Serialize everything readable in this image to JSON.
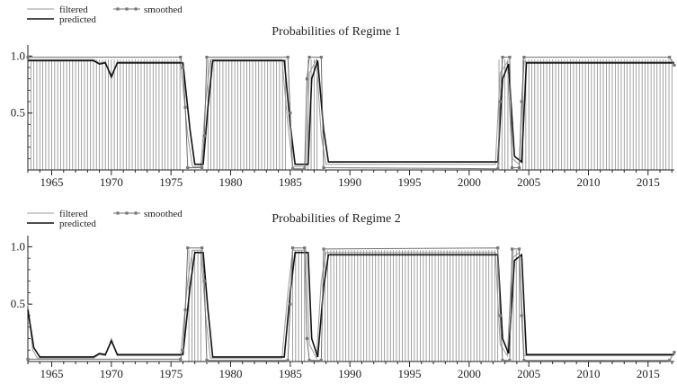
{
  "legend": {
    "filtered": "filtered",
    "smoothed": "smoothed",
    "predicted": "predicted"
  },
  "chart_data": [
    {
      "type": "line",
      "title": "Probabilities of Regime 1",
      "xlabel": "",
      "ylabel": "",
      "xlim": [
        1963.0,
        2017.2
      ],
      "ylim": [
        0,
        1.05
      ],
      "xticks": [
        1965,
        1970,
        1975,
        1980,
        1985,
        1990,
        1995,
        2000,
        2005,
        2010,
        2015
      ],
      "yticks": [
        0.5,
        1.0
      ],
      "ytick_labels": [
        "0.5",
        "1.0"
      ],
      "legend_position": "top-left",
      "series": [
        {
          "name": "filtered",
          "points": [
            [
              1963.0,
              0.97
            ],
            [
              1968.5,
              0.97
            ],
            [
              1969.0,
              0.94
            ],
            [
              1969.5,
              0.95
            ],
            [
              1970.0,
              0.8
            ],
            [
              1970.5,
              0.95
            ],
            [
              1975.8,
              0.95
            ],
            [
              1976.4,
              0.3
            ],
            [
              1976.8,
              0.03
            ],
            [
              1977.5,
              0.03
            ],
            [
              1977.9,
              0.6
            ],
            [
              1978.3,
              0.97
            ],
            [
              1984.3,
              0.97
            ],
            [
              1984.8,
              0.4
            ],
            [
              1985.2,
              0.03
            ],
            [
              1986.3,
              0.03
            ],
            [
              1986.6,
              0.85
            ],
            [
              1987.2,
              0.97
            ],
            [
              1987.6,
              0.3
            ],
            [
              1988.0,
              0.05
            ],
            [
              2002.2,
              0.05
            ],
            [
              2002.6,
              0.85
            ],
            [
              2003.2,
              0.95
            ],
            [
              2003.6,
              0.1
            ],
            [
              2004.2,
              0.05
            ],
            [
              2004.6,
              0.95
            ],
            [
              2017.2,
              0.95
            ]
          ]
        },
        {
          "name": "predicted",
          "points": [
            [
              1963.0,
              0.96
            ],
            [
              1968.5,
              0.96
            ],
            [
              1969.0,
              0.93
            ],
            [
              1969.5,
              0.94
            ],
            [
              1970.0,
              0.82
            ],
            [
              1970.5,
              0.94
            ],
            [
              1976.0,
              0.94
            ],
            [
              1976.6,
              0.35
            ],
            [
              1977.0,
              0.05
            ],
            [
              1977.7,
              0.05
            ],
            [
              1978.1,
              0.55
            ],
            [
              1978.5,
              0.96
            ],
            [
              1984.5,
              0.96
            ],
            [
              1985.0,
              0.4
            ],
            [
              1985.4,
              0.05
            ],
            [
              1986.5,
              0.05
            ],
            [
              1986.8,
              0.8
            ],
            [
              1987.3,
              0.96
            ],
            [
              1987.8,
              0.35
            ],
            [
              1988.2,
              0.07
            ],
            [
              2002.4,
              0.07
            ],
            [
              2002.8,
              0.8
            ],
            [
              2003.3,
              0.93
            ],
            [
              2003.8,
              0.12
            ],
            [
              2004.4,
              0.07
            ],
            [
              2004.8,
              0.94
            ],
            [
              2017.2,
              0.94
            ]
          ]
        },
        {
          "name": "smoothed",
          "points": [
            [
              1963.0,
              0.99
            ],
            [
              1975.8,
              0.99
            ],
            [
              1976.0,
              0.9
            ],
            [
              1976.2,
              0.55
            ],
            [
              1976.4,
              0.02
            ],
            [
              1977.6,
              0.02
            ],
            [
              1977.8,
              0.3
            ],
            [
              1978.0,
              0.99
            ],
            [
              1984.8,
              0.99
            ],
            [
              1985.0,
              0.5
            ],
            [
              1985.2,
              0.01
            ],
            [
              1986.2,
              0.01
            ],
            [
              1986.4,
              0.8
            ],
            [
              1986.6,
              0.99
            ],
            [
              1987.6,
              0.99
            ],
            [
              1987.8,
              0.02
            ],
            [
              2002.4,
              0.01
            ],
            [
              2002.6,
              0.6
            ],
            [
              2002.8,
              0.99
            ],
            [
              2003.4,
              0.99
            ],
            [
              2003.6,
              0.02
            ],
            [
              2004.2,
              0.02
            ],
            [
              2004.4,
              0.6
            ],
            [
              2004.6,
              0.99
            ],
            [
              2016.8,
              0.99
            ],
            [
              2017.2,
              0.92
            ]
          ]
        }
      ],
      "bars": [
        [
          1963.0,
          1975.9,
          0.97
        ],
        [
          1978.1,
          1984.7,
          0.97
        ],
        [
          1986.5,
          1987.4,
          0.97
        ],
        [
          2002.5,
          2003.4,
          0.97
        ],
        [
          2004.5,
          2017.2,
          0.97
        ]
      ]
    },
    {
      "type": "line",
      "title": "Probabilities of Regime 2",
      "xlabel": "",
      "ylabel": "",
      "xlim": [
        1963.0,
        2017.2
      ],
      "ylim": [
        0,
        1.05
      ],
      "xticks": [
        1965,
        1970,
        1975,
        1980,
        1985,
        1990,
        1995,
        2000,
        2005,
        2010,
        2015
      ],
      "yticks": [
        0.5,
        1.0
      ],
      "ytick_labels": [
        "0.5",
        "1.0"
      ],
      "legend_position": "top-left",
      "series": [
        {
          "name": "filtered",
          "points": [
            [
              1963.0,
              0.5
            ],
            [
              1963.4,
              0.1
            ],
            [
              1963.8,
              0.03
            ],
            [
              1968.5,
              0.03
            ],
            [
              1969.0,
              0.06
            ],
            [
              1969.5,
              0.05
            ],
            [
              1970.0,
              0.2
            ],
            [
              1970.5,
              0.05
            ],
            [
              1975.8,
              0.05
            ],
            [
              1976.4,
              0.7
            ],
            [
              1976.8,
              0.97
            ],
            [
              1977.5,
              0.97
            ],
            [
              1977.9,
              0.4
            ],
            [
              1978.3,
              0.03
            ],
            [
              1984.3,
              0.03
            ],
            [
              1984.8,
              0.6
            ],
            [
              1985.2,
              0.97
            ],
            [
              1986.3,
              0.97
            ],
            [
              1986.6,
              0.15
            ],
            [
              1987.2,
              0.03
            ],
            [
              1987.6,
              0.7
            ],
            [
              1988.0,
              0.95
            ],
            [
              2002.2,
              0.95
            ],
            [
              2002.6,
              0.15
            ],
            [
              2003.2,
              0.05
            ],
            [
              2003.6,
              0.9
            ],
            [
              2004.2,
              0.95
            ],
            [
              2004.6,
              0.05
            ],
            [
              2017.0,
              0.05
            ],
            [
              2017.2,
              0.08
            ]
          ]
        },
        {
          "name": "predicted",
          "points": [
            [
              1963.0,
              0.45
            ],
            [
              1963.5,
              0.12
            ],
            [
              1964.0,
              0.04
            ],
            [
              1968.5,
              0.04
            ],
            [
              1969.0,
              0.07
            ],
            [
              1969.5,
              0.06
            ],
            [
              1970.0,
              0.18
            ],
            [
              1970.5,
              0.06
            ],
            [
              1976.0,
              0.06
            ],
            [
              1976.6,
              0.65
            ],
            [
              1977.0,
              0.95
            ],
            [
              1977.7,
              0.95
            ],
            [
              1978.1,
              0.45
            ],
            [
              1978.5,
              0.04
            ],
            [
              1984.5,
              0.04
            ],
            [
              1985.0,
              0.6
            ],
            [
              1985.4,
              0.95
            ],
            [
              1986.5,
              0.95
            ],
            [
              1986.8,
              0.2
            ],
            [
              1987.3,
              0.04
            ],
            [
              1987.8,
              0.65
            ],
            [
              1988.2,
              0.93
            ],
            [
              2002.4,
              0.93
            ],
            [
              2002.8,
              0.2
            ],
            [
              2003.3,
              0.07
            ],
            [
              2003.8,
              0.88
            ],
            [
              2004.4,
              0.93
            ],
            [
              2004.8,
              0.06
            ],
            [
              2017.2,
              0.06
            ]
          ]
        },
        {
          "name": "smoothed",
          "points": [
            [
              1963.0,
              0.02
            ],
            [
              1975.8,
              0.02
            ],
            [
              1976.0,
              0.1
            ],
            [
              1976.2,
              0.45
            ],
            [
              1976.4,
              0.99
            ],
            [
              1977.6,
              0.99
            ],
            [
              1977.8,
              0.7
            ],
            [
              1978.0,
              0.01
            ],
            [
              1984.8,
              0.01
            ],
            [
              1985.0,
              0.5
            ],
            [
              1985.2,
              0.99
            ],
            [
              1986.2,
              0.99
            ],
            [
              1986.4,
              0.2
            ],
            [
              1986.6,
              0.01
            ],
            [
              1987.6,
              0.01
            ],
            [
              1987.8,
              0.98
            ],
            [
              2002.4,
              0.99
            ],
            [
              2002.6,
              0.4
            ],
            [
              2002.8,
              0.01
            ],
            [
              2003.4,
              0.01
            ],
            [
              2003.6,
              0.98
            ],
            [
              2004.2,
              0.98
            ],
            [
              2004.4,
              0.4
            ],
            [
              2004.6,
              0.01
            ],
            [
              2016.8,
              0.01
            ],
            [
              2017.2,
              0.08
            ]
          ]
        }
      ],
      "bars": [
        [
          1976.5,
          1977.6,
          0.97
        ],
        [
          1985.2,
          1986.3,
          0.97
        ],
        [
          1987.9,
          2002.4,
          0.97
        ],
        [
          2003.7,
          2004.3,
          0.97
        ]
      ]
    }
  ]
}
